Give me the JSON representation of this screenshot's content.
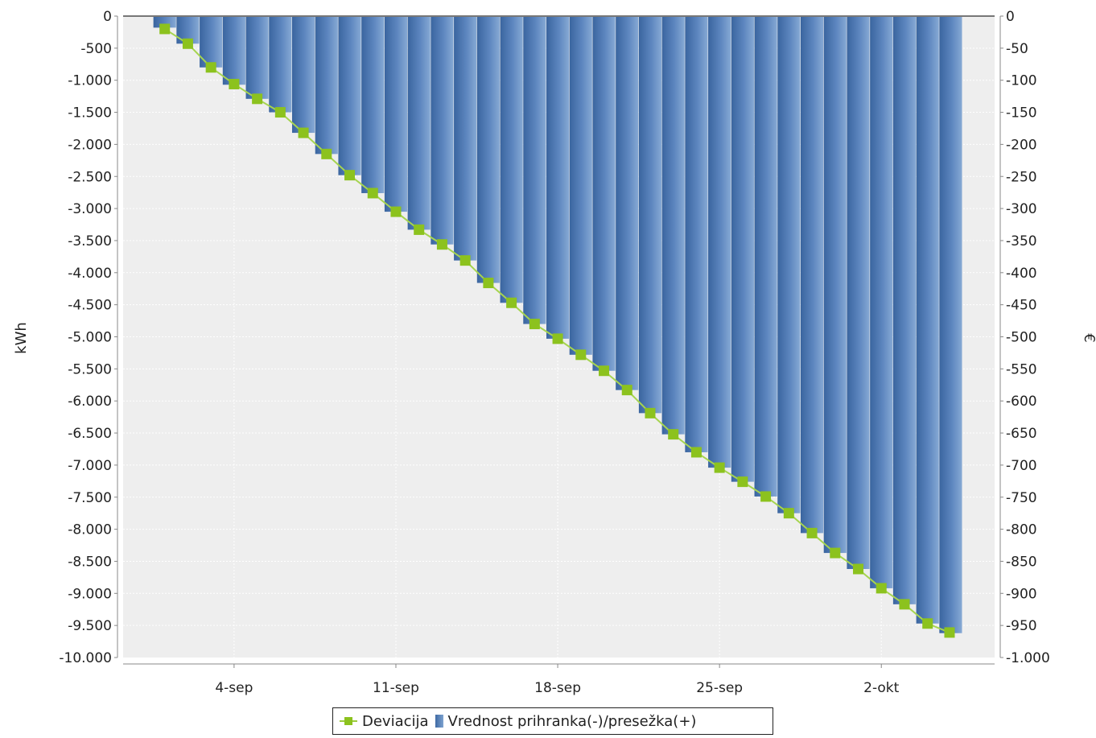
{
  "chart_data": {
    "type": "bar+line",
    "title": "",
    "y_left": {
      "label": "kWh",
      "range": [
        -10000,
        0
      ],
      "ticks": [
        0,
        -500,
        -1000,
        -1500,
        -2000,
        -2500,
        -3000,
        -3500,
        -4000,
        -4500,
        -5000,
        -5500,
        -6000,
        -6500,
        -7000,
        -7500,
        -8000,
        -8500,
        -9000,
        -9500,
        -10000
      ],
      "tick_labels": [
        "0",
        "-500",
        "-1.000",
        "-1.500",
        "-2.000",
        "-2.500",
        "-3.000",
        "-3.500",
        "-4.000",
        "-4.500",
        "-5.000",
        "-5.500",
        "-6.000",
        "-6.500",
        "-7.000",
        "-7.500",
        "-8.000",
        "-8.500",
        "-9.000",
        "-9.500",
        "-10.000"
      ]
    },
    "y_right": {
      "label": "€",
      "range": [
        -1000,
        0
      ],
      "ticks": [
        0,
        -50,
        -100,
        -150,
        -200,
        -250,
        -300,
        -350,
        -400,
        -450,
        -500,
        -550,
        -600,
        -650,
        -700,
        -750,
        -800,
        -850,
        -900,
        -950,
        -1000
      ],
      "tick_labels": [
        "0",
        "-50",
        "-100",
        "-150",
        "-200",
        "-250",
        "-300",
        "-350",
        "-400",
        "-450",
        "-500",
        "-550",
        "-600",
        "-650",
        "-700",
        "-750",
        "-800",
        "-850",
        "-900",
        "-950",
        "-1.000"
      ]
    },
    "x_ticks": [
      {
        "day": 4,
        "label": "4-sep"
      },
      {
        "day": 11,
        "label": "11-sep"
      },
      {
        "day": 18,
        "label": "18-sep"
      },
      {
        "day": 25,
        "label": "25-sep"
      },
      {
        "day": 32,
        "label": "2-okt"
      }
    ],
    "x_range_days": [
      -0.8,
      36.9
    ],
    "grid": true,
    "legend": "bottom",
    "series": [
      {
        "name": "Deviacija",
        "type": "line",
        "axis": "left",
        "color": "#8cc21e",
        "days": [
          1,
          2,
          3,
          4,
          5,
          6,
          7,
          8,
          9,
          10,
          11,
          12,
          13,
          14,
          15,
          16,
          17,
          18,
          19,
          20,
          21,
          22,
          23,
          24,
          25,
          26,
          27,
          28,
          29,
          30,
          31,
          32,
          33,
          34
        ],
        "values": [
          -200,
          -430,
          -800,
          -1060,
          -1290,
          -1500,
          -1820,
          -2150,
          -2480,
          -2760,
          -3050,
          -3330,
          -3560,
          -3810,
          -4160,
          -4470,
          -4800,
          -5030,
          -5280,
          -5530,
          -5830,
          -6190,
          -6520,
          -6800,
          -7040,
          -7260,
          -7490,
          -7750,
          -8060,
          -8370,
          -8620,
          -8920,
          -9170,
          -9470
        ]
      },
      {
        "name": "Vrednost prihranka(-)/presežka(+)",
        "type": "bar",
        "axis": "right",
        "color": "#4e7ab8",
        "days": [
          1,
          2,
          3,
          4,
          5,
          6,
          7,
          8,
          9,
          10,
          11,
          12,
          13,
          14,
          15,
          16,
          17,
          18,
          19,
          20,
          21,
          22,
          23,
          24,
          25,
          26,
          27,
          28,
          29,
          30,
          31,
          32,
          33,
          34,
          35
        ],
        "values": [
          -18,
          -43,
          -80,
          -107,
          -129,
          -150,
          -182,
          -215,
          -248,
          -276,
          -305,
          -333,
          -356,
          -381,
          -416,
          -447,
          -480,
          -503,
          -528,
          -553,
          -583,
          -619,
          -652,
          -680,
          -704,
          -726,
          -749,
          -775,
          -806,
          -837,
          -862,
          -892,
          -917,
          -947,
          -962
        ]
      }
    ],
    "last_line_point": {
      "day": 34.95,
      "value": -9610
    }
  },
  "legend": {
    "line_label": "Deviacija",
    "bar_label": "Vrednost prihranka(-)/presežka(+)"
  }
}
